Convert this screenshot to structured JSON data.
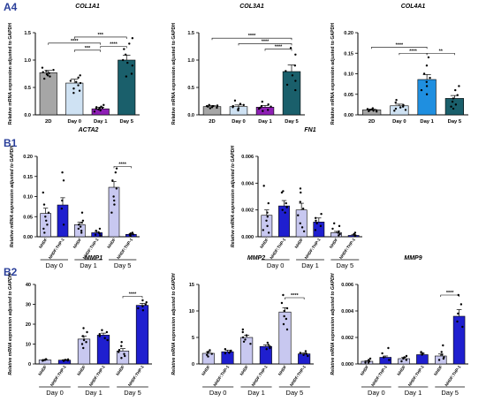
{
  "chart_data": [
    {
      "type": "bar",
      "panel": "A4",
      "title": "COL1A1",
      "ylabel": "Relative mRNA expression adjusted to GAPDH",
      "categories": [
        "2D",
        "Day 0",
        "Day 1",
        "Day 5"
      ],
      "values": [
        0.77,
        0.58,
        0.11,
        1.0
      ],
      "errors": [
        0.04,
        0.07,
        0.03,
        0.09
      ],
      "colors": [
        "#a6a6a6",
        "#cfe2f3",
        "#8e1fb5",
        "#1a5f6b"
      ],
      "ylim": [
        0,
        1.5
      ],
      "yticks": [
        "0.0",
        "0.5",
        "1.0",
        "1.5"
      ],
      "points": [
        [
          0.86,
          0.82,
          0.78,
          0.76,
          0.74,
          0.72,
          0.7,
          0.66,
          0.8
        ],
        [
          0.72,
          0.68,
          0.62,
          0.58,
          0.54,
          0.48,
          0.44,
          0.4,
          0.6
        ],
        [
          0.18,
          0.15,
          0.13,
          0.12,
          0.11,
          0.1,
          0.08,
          0.06,
          0.14
        ],
        [
          1.4,
          1.3,
          1.2,
          1.1,
          1.0,
          0.95,
          0.9,
          0.75,
          0.7
        ]
      ],
      "significance": [
        {
          "from": 1,
          "to": 2,
          "label": "***",
          "y": 1.18
        },
        {
          "from": 2,
          "to": 3,
          "label": "****",
          "y": 1.25
        },
        {
          "from": 0,
          "to": 2,
          "label": "****",
          "y": 1.31
        },
        {
          "from": 1,
          "to": 3,
          "label": "***",
          "y": 1.42
        }
      ]
    },
    {
      "type": "bar",
      "panel": "",
      "title": "COL3A1",
      "ylabel": "Relative mRNA expression adjusted to GAPDH",
      "categories": [
        "2D",
        "Day 0",
        "Day 1",
        "Day 5"
      ],
      "values": [
        0.15,
        0.15,
        0.14,
        0.79
      ],
      "errors": [
        0.02,
        0.03,
        0.03,
        0.12
      ],
      "colors": [
        "#a6a6a6",
        "#cfe2f3",
        "#8e1fb5",
        "#1a5f6b"
      ],
      "ylim": [
        0,
        1.5
      ],
      "yticks": [
        "0.0",
        "0.5",
        "1.0",
        "1.5"
      ],
      "points": [
        [
          0.18,
          0.17,
          0.16,
          0.15,
          0.14,
          0.13,
          0.12,
          0.16
        ],
        [
          0.26,
          0.2,
          0.16,
          0.14,
          0.12,
          0.1,
          0.08,
          0.18
        ],
        [
          0.24,
          0.19,
          0.15,
          0.13,
          0.11,
          0.09,
          0.07,
          0.16
        ],
        [
          1.22,
          1.1,
          0.9,
          0.8,
          0.72,
          0.62,
          0.55,
          0.45
        ]
      ],
      "significance": [
        {
          "from": 2,
          "to": 3,
          "label": "****",
          "y": 1.2
        },
        {
          "from": 1,
          "to": 3,
          "label": "****",
          "y": 1.3
        },
        {
          "from": 0,
          "to": 3,
          "label": "****",
          "y": 1.4
        }
      ]
    },
    {
      "type": "bar",
      "panel": "",
      "title": "COL4A1",
      "ylabel": "Relative mRNA expression adjusted to GAPDH",
      "categories": [
        "2D",
        "Day 0",
        "Day 1",
        "Day 5"
      ],
      "values": [
        0.012,
        0.022,
        0.086,
        0.04
      ],
      "errors": [
        0.002,
        0.004,
        0.012,
        0.007
      ],
      "colors": [
        "#a6a6a6",
        "#cfe2f3",
        "#1f8fe0",
        "#1a5f6b"
      ],
      "ylim": [
        0,
        0.2
      ],
      "yticks": [
        "0.00",
        "0.05",
        "0.10",
        "0.15",
        "0.20"
      ],
      "points": [
        [
          0.016,
          0.014,
          0.013,
          0.012,
          0.011,
          0.01,
          0.009,
          0.008
        ],
        [
          0.036,
          0.03,
          0.024,
          0.02,
          0.018,
          0.015,
          0.012,
          0.01
        ],
        [
          0.14,
          0.12,
          0.1,
          0.09,
          0.08,
          0.07,
          0.06,
          0.05
        ],
        [
          0.07,
          0.06,
          0.048,
          0.04,
          0.032,
          0.025,
          0.02,
          0.015
        ]
      ],
      "significance": [
        {
          "from": 1,
          "to": 2,
          "label": "****",
          "y": 0.15
        },
        {
          "from": 2,
          "to": 3,
          "label": "**",
          "y": 0.15
        },
        {
          "from": 0,
          "to": 2,
          "label": "****",
          "y": 0.165
        }
      ]
    },
    {
      "type": "bar",
      "panel": "B1",
      "title": "ACTA2",
      "ylabel": "Relative mRNA expression adjusted to GAPDH",
      "categories": [
        "NHDF",
        "NHDF:THP-1",
        "NHDF",
        "NHDF:THP-1",
        "NHDF",
        "NHDF:THP-1"
      ],
      "groups": [
        "Day 0",
        "Day 1",
        "Day 5"
      ],
      "values": [
        0.058,
        0.079,
        0.03,
        0.01,
        0.123,
        0.006
      ],
      "errors": [
        0.013,
        0.018,
        0.006,
        0.003,
        0.014,
        0.002
      ],
      "colors": [
        "#c8c8f0",
        "#1f1fcf",
        "#c8c8f0",
        "#1f1fcf",
        "#c8c8f0",
        "#1f1fcf"
      ],
      "ylim": [
        0,
        0.2
      ],
      "yticks": [
        "0.00",
        "0.05",
        "0.10",
        "0.15",
        "0.20"
      ],
      "points": [
        [
          0.11,
          0.08,
          0.06,
          0.05,
          0.04,
          0.03,
          0.02,
          0.01
        ],
        [
          0.16,
          0.14,
          0.09,
          0.07,
          0.03
        ],
        [
          0.06,
          0.04,
          0.035,
          0.03,
          0.025,
          0.02,
          0.015,
          0.01
        ],
        [
          0.02,
          0.015,
          0.01,
          0.008,
          0.005,
          0.003
        ],
        [
          0.17,
          0.16,
          0.14,
          0.12,
          0.1,
          0.09,
          0.08,
          0.06
        ],
        [
          0.01,
          0.008,
          0.006,
          0.005,
          0.004,
          0.002
        ]
      ],
      "significance": [
        {
          "from": 4,
          "to": 5,
          "label": "****",
          "y": 0.175
        }
      ]
    },
    {
      "type": "bar",
      "panel": "",
      "title": "FN1",
      "ylabel": "Relative mRNA expression adjusted to GAPDH",
      "categories": [
        "NHDF",
        "NHDF:THP-1",
        "NHDF",
        "NHDF:THP-1",
        "NHDF",
        "NHDF:THP-1"
      ],
      "groups": [
        "Day 0",
        "Day 1",
        "Day 5"
      ],
      "values": [
        0.0016,
        0.0023,
        0.002,
        0.0011,
        0.0003,
        0.0001
      ],
      "errors": [
        0.0004,
        0.0004,
        0.0005,
        0.0003,
        0.0001,
        5e-05
      ],
      "colors": [
        "#c8c8f0",
        "#1f1fcf",
        "#c8c8f0",
        "#1f1fcf",
        "#c8c8f0",
        "#1f1fcf"
      ],
      "ylim": [
        0,
        0.006
      ],
      "yticks": [
        "0.000",
        "0.002",
        "0.004",
        "0.006"
      ],
      "points": [
        [
          0.0038,
          0.0025,
          0.0018,
          0.0015,
          0.0012,
          0.0008,
          0.0005,
          0.0003
        ],
        [
          0.0034,
          0.0033,
          0.0025,
          0.0022,
          0.002,
          0.0018
        ],
        [
          0.0036,
          0.0033,
          0.0026,
          0.0021,
          0.0016,
          0.001,
          0.0007,
          0.0004
        ],
        [
          0.0017,
          0.0014,
          0.0012,
          0.001,
          0.0008,
          0.0005
        ],
        [
          0.001,
          0.0008,
          0.0006,
          0.0004,
          0.0003,
          0.0002,
          0.0001
        ],
        [
          0.0003,
          0.0002,
          0.0001,
          5e-05
        ]
      ],
      "significance": []
    },
    {
      "type": "bar",
      "panel": "B2",
      "title": "MMP1",
      "ylabel": "Relative mRNA expression adjusted to GAPDH",
      "categories": [
        "NHDF",
        "NHDF:THP-1",
        "NHDF",
        "NHDF:THP-1",
        "NHDF",
        "NHDF:THP-1"
      ],
      "groups": [
        "Day 0",
        "Day 1",
        "Day 5"
      ],
      "values": [
        2.0,
        1.9,
        12.5,
        14.5,
        6.5,
        29.5
      ],
      "errors": [
        0.2,
        0.2,
        1.5,
        1.0,
        1.2,
        1.0
      ],
      "colors": [
        "#c8c8f0",
        "#1f1fcf",
        "#c8c8f0",
        "#1f1fcf",
        "#c8c8f0",
        "#1f1fcf"
      ],
      "ylim": [
        0,
        40
      ],
      "yticks": [
        "0",
        "10",
        "20",
        "30",
        "40"
      ],
      "points": [
        [
          2.4,
          2.2,
          2.0,
          1.9,
          1.8,
          1.6
        ],
        [
          2.3,
          2.1,
          1.9,
          1.8,
          1.7,
          1.5
        ],
        [
          18,
          16,
          14,
          12,
          11,
          10,
          8
        ],
        [
          17,
          16,
          15,
          14,
          13,
          12
        ],
        [
          11,
          9,
          7,
          6,
          5,
          4,
          3
        ],
        [
          32,
          31,
          30,
          29,
          28,
          27
        ]
      ],
      "significance": [
        {
          "from": 4,
          "to": 5,
          "label": "****",
          "y": 34
        }
      ]
    },
    {
      "type": "bar",
      "panel": "",
      "title": "MMP2",
      "ylabel": "Relative mRNA expression adjusted to GAPDH",
      "categories": [
        "NHDF",
        "NHDF:THP-1",
        "NHDF",
        "NHDF:THP-1",
        "NHDF",
        "NHDF:THP-1"
      ],
      "groups": [
        "Day 0",
        "Day 1",
        "Day 5"
      ],
      "values": [
        2.0,
        2.3,
        5.0,
        3.3,
        9.8,
        1.9
      ],
      "errors": [
        0.3,
        0.3,
        0.4,
        0.3,
        0.8,
        0.2
      ],
      "colors": [
        "#c8c8f0",
        "#1f1fcf",
        "#c8c8f0",
        "#1f1fcf",
        "#c8c8f0",
        "#1f1fcf"
      ],
      "ylim": [
        0,
        15
      ],
      "yticks": [
        "0",
        "5",
        "10",
        "15"
      ],
      "points": [
        [
          2.6,
          2.3,
          2.1,
          1.9,
          1.7,
          1.4
        ],
        [
          2.8,
          2.5,
          2.3,
          2.1,
          2.0
        ],
        [
          6.5,
          6.0,
          5.4,
          5.0,
          4.6,
          4.2,
          3.8
        ],
        [
          4.0,
          3.6,
          3.3,
          3.0,
          2.8
        ],
        [
          13,
          11.5,
          10.5,
          10,
          9,
          8.5,
          7.5,
          6.5
        ],
        [
          2.4,
          2.1,
          1.9,
          1.7,
          1.5
        ]
      ],
      "significance": [
        {
          "from": 4,
          "to": 5,
          "label": "****",
          "y": 12.5
        }
      ]
    },
    {
      "type": "bar",
      "panel": "",
      "title": "MMP9",
      "ylabel": "Relative mRNA expression adjusted to GAPDH",
      "categories": [
        "NHDF",
        "NHDF:THP-1",
        "NHDF",
        "NHDF:THP-1",
        "NHDF",
        "NHDF:THP-1"
      ],
      "groups": [
        "Day 0",
        "Day 1",
        "Day 5"
      ],
      "values": [
        0.0002,
        0.0005,
        0.0004,
        0.0007,
        0.0006,
        0.0036
      ],
      "errors": [
        5e-05,
        0.0001,
        0.0001,
        0.0001,
        0.00015,
        0.0005
      ],
      "colors": [
        "#c8c8f0",
        "#1f1fcf",
        "#c8c8f0",
        "#1f1fcf",
        "#c8c8f0",
        "#1f1fcf"
      ],
      "ylim": [
        0,
        0.006
      ],
      "yticks": [
        "0.000",
        "0.002",
        "0.004",
        "0.006"
      ],
      "points": [
        [
          0.0004,
          0.0003,
          0.0002,
          0.0001,
          0.0001
        ],
        [
          0.0012,
          0.0008,
          0.0005,
          0.0003
        ],
        [
          0.0006,
          0.0005,
          0.0004,
          0.0003,
          0.0002
        ],
        [
          0.0009,
          0.0008,
          0.0007
        ],
        [
          0.0014,
          0.0009,
          0.0007,
          0.0005,
          0.0004,
          0.0003
        ],
        [
          0.0052,
          0.0045,
          0.0038,
          0.0032,
          0.0028
        ]
      ],
      "significance": [
        {
          "from": 4,
          "to": 5,
          "label": "****",
          "y": 0.0052
        }
      ]
    }
  ]
}
